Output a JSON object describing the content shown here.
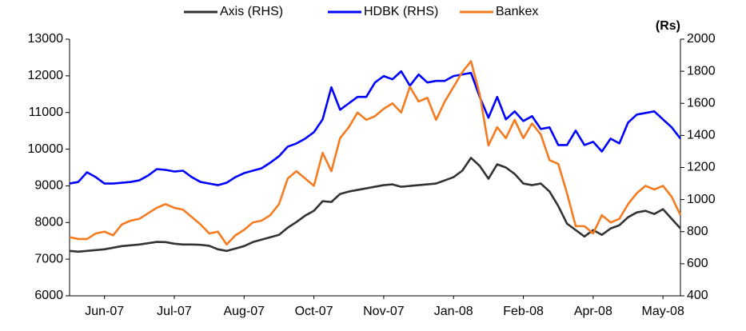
{
  "chart_data": {
    "type": "line",
    "y2label": "(Rs)",
    "categories": [
      null,
      null,
      null,
      null,
      "Jun-07",
      null,
      null,
      null,
      null,
      null,
      null,
      null,
      "Jul-07",
      null,
      null,
      null,
      null,
      null,
      null,
      null,
      "Aug-07",
      null,
      null,
      null,
      null,
      null,
      null,
      null,
      "Oct-07",
      null,
      null,
      null,
      null,
      null,
      null,
      null,
      "Nov-07",
      null,
      null,
      null,
      null,
      null,
      null,
      null,
      "Jan-08",
      null,
      null,
      null,
      null,
      null,
      null,
      null,
      "Feb-08",
      null,
      null,
      null,
      null,
      null,
      null,
      null,
      "Apr-08",
      null,
      null,
      null,
      null,
      null,
      null,
      null,
      "May-08",
      null,
      null
    ],
    "series": [
      {
        "name": "Axis (RHS)",
        "color": "#333333",
        "axis": "y2",
        "values": [
          680,
          675,
          680,
          685,
          690,
          700,
          710,
          715,
          720,
          728,
          736,
          735,
          725,
          720,
          720,
          718,
          712,
          690,
          680,
          695,
          710,
          735,
          750,
          765,
          780,
          825,
          860,
          900,
          930,
          990,
          985,
          1035,
          1050,
          1060,
          1070,
          1080,
          1090,
          1095,
          1080,
          1085,
          1090,
          1095,
          1100,
          1120,
          1140,
          1180,
          1260,
          1210,
          1130,
          1220,
          1200,
          1160,
          1100,
          1090,
          1100,
          1050,
          960,
          850,
          810,
          770,
          810,
          780,
          820,
          840,
          890,
          920,
          930,
          910,
          940,
          880,
          820
        ]
      },
      {
        "name": "HDBK (RHS)",
        "color": "#0000ff",
        "axis": "y2",
        "values": [
          1100,
          1110,
          1170,
          1140,
          1100,
          1100,
          1105,
          1110,
          1120,
          1150,
          1190,
          1185,
          1175,
          1180,
          1140,
          1110,
          1100,
          1090,
          1105,
          1140,
          1165,
          1180,
          1195,
          1230,
          1270,
          1330,
          1350,
          1380,
          1420,
          1500,
          1700,
          1560,
          1600,
          1640,
          1640,
          1730,
          1770,
          1750,
          1800,
          1710,
          1780,
          1730,
          1740,
          1740,
          1770,
          1780,
          1790,
          1640,
          1510,
          1640,
          1500,
          1550,
          1490,
          1520,
          1440,
          1450,
          1340,
          1340,
          1430,
          1340,
          1360,
          1300,
          1380,
          1350,
          1480,
          1530,
          1540,
          1550,
          1500,
          1450,
          1380
        ]
      },
      {
        "name": "Bankex",
        "color": "#f47b20",
        "values": [
          7600,
          7550,
          7550,
          7700,
          7750,
          7650,
          7950,
          8050,
          8100,
          8250,
          8400,
          8500,
          8400,
          8350,
          8150,
          7950,
          7700,
          7750,
          7400,
          7650,
          7800,
          8000,
          8050,
          8200,
          8500,
          9200,
          9400,
          9200,
          9000,
          9900,
          9400,
          10300,
          10600,
          11000,
          10800,
          10900,
          11100,
          11250,
          11000,
          11700,
          11300,
          11400,
          10800,
          11300,
          11700,
          12100,
          12400,
          11500,
          10100,
          10600,
          10300,
          10800,
          10300,
          10700,
          10400,
          9700,
          9600,
          8800,
          7900,
          7900,
          7700,
          8200,
          8000,
          8100,
          8500,
          8800,
          9000,
          8900,
          9000,
          8700,
          8200
        ]
      }
    ],
    "ylim": [
      6000,
      13000
    ],
    "yticks": [
      6000,
      7000,
      8000,
      9000,
      10000,
      11000,
      12000,
      13000
    ],
    "y2lim": [
      400,
      2000
    ],
    "y2ticks": [
      400,
      600,
      800,
      1000,
      1200,
      1400,
      1600,
      1800,
      2000
    ]
  }
}
